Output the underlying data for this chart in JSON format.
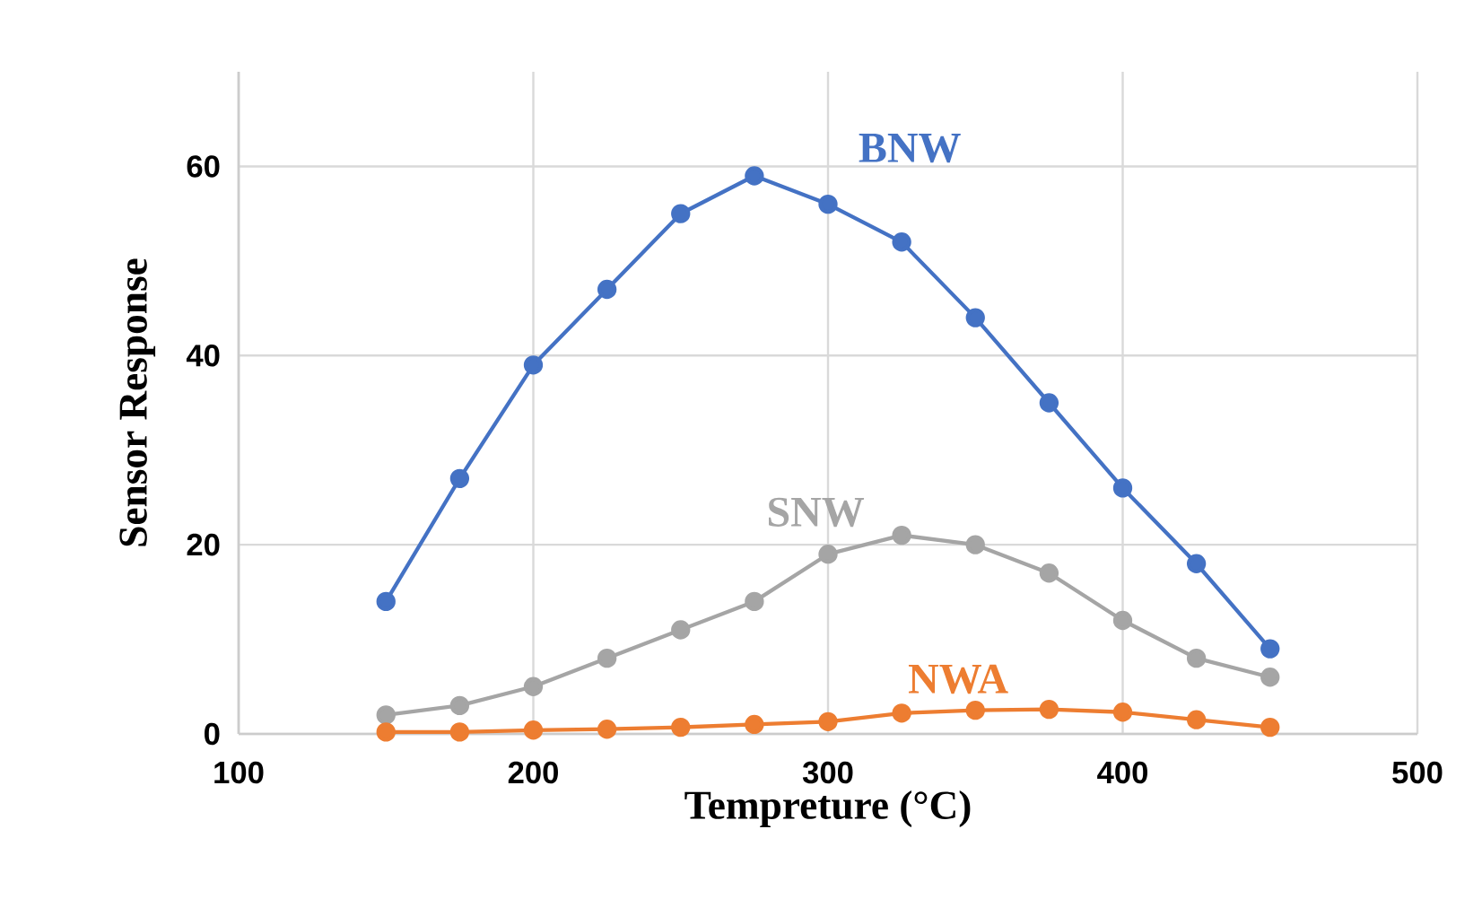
{
  "chart_data": {
    "type": "line",
    "xlabel": "Tempreture (°C)",
    "ylabel": "Sensor Response",
    "x": [
      150,
      175,
      200,
      225,
      250,
      275,
      300,
      325,
      350,
      375,
      400,
      425,
      450
    ],
    "series": [
      {
        "name": "BNW",
        "color": "#4472c4",
        "values": [
          14,
          27,
          39,
          47,
          55,
          59,
          56,
          52,
          44,
          35,
          26,
          18,
          9
        ]
      },
      {
        "name": "SNW",
        "color": "#a5a5a5",
        "values": [
          2,
          3,
          5,
          8,
          11,
          14,
          19,
          21,
          20,
          17,
          12,
          8,
          6
        ]
      },
      {
        "name": "NWA",
        "color": "#ed7d31",
        "values": [
          0.2,
          0.2,
          0.4,
          0.5,
          0.7,
          1,
          1.3,
          2.2,
          2.5,
          2.6,
          2.3,
          1.5,
          0.7
        ]
      }
    ],
    "xlim": [
      100,
      500
    ],
    "ylim": [
      0,
      70
    ],
    "xticks": [
      100,
      200,
      300,
      400,
      500
    ],
    "yticks": [
      0,
      20,
      40,
      60
    ],
    "grid": true,
    "marker": "circle",
    "line_style": "solid"
  }
}
